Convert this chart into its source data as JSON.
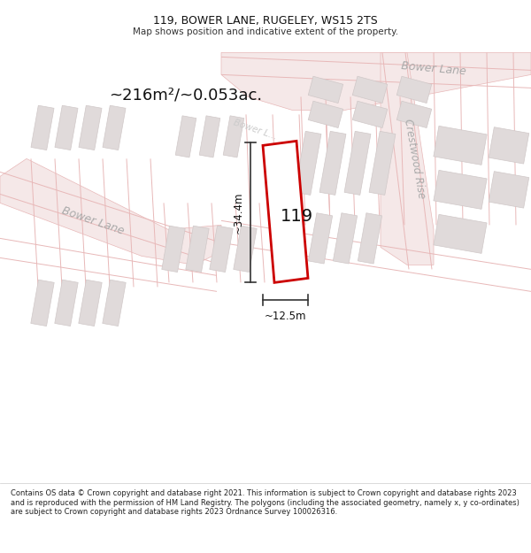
{
  "title": "119, BOWER LANE, RUGELEY, WS15 2TS",
  "subtitle": "Map shows position and indicative extent of the property.",
  "footer": "Contains OS data © Crown copyright and database right 2021. This information is subject to Crown copyright and database rights 2023 and is reproduced with the permission of HM Land Registry. The polygons (including the associated geometry, namely x, y co-ordinates) are subject to Crown copyright and database rights 2023 Ordnance Survey 100026316.",
  "area_label": "~216m²/~0.053ac.",
  "width_label": "~12.5m",
  "height_label": "~34.4m",
  "plot_number": "119",
  "map_bg": "#ffffff",
  "road_line_color": "#e8b8b8",
  "road_fill_color": "#f5e8e8",
  "building_color": "#e0dada",
  "building_edge": "#d0c8c8",
  "plot_color": "#cc0000",
  "plot_fill": "#ffffff",
  "dim_color": "#333333",
  "street_label_color": "#aaaaaa",
  "bower_label_color": "#bbbbbb"
}
